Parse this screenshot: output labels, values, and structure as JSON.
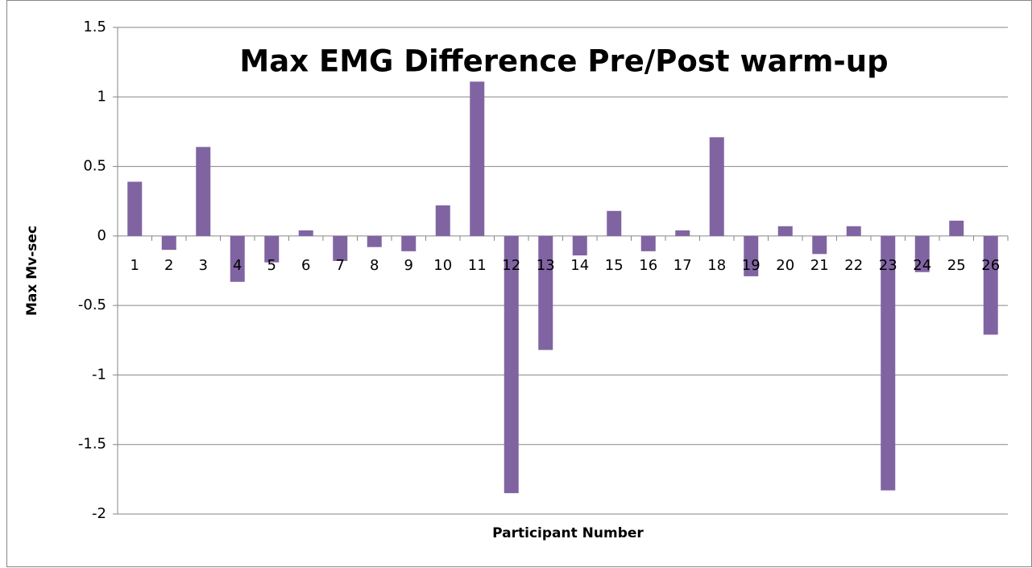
{
  "chart_data": {
    "type": "bar",
    "title": "Max EMG Difference Pre/Post warm-up",
    "xlabel": "Participant Number",
    "ylabel": "Max Mv-sec",
    "categories": [
      "1",
      "2",
      "3",
      "4",
      "5",
      "6",
      "7",
      "8",
      "9",
      "10",
      "11",
      "12",
      "13",
      "14",
      "15",
      "16",
      "17",
      "18",
      "19",
      "20",
      "21",
      "22",
      "23",
      "24",
      "25",
      "26"
    ],
    "values": [
      0.39,
      -0.1,
      0.64,
      -0.33,
      -0.19,
      0.04,
      -0.18,
      -0.08,
      -0.11,
      0.22,
      1.11,
      -1.85,
      -0.82,
      -0.14,
      0.18,
      -0.11,
      0.04,
      0.71,
      -0.29,
      0.07,
      -0.13,
      0.07,
      -1.83,
      -0.26,
      0.11,
      -0.71
    ],
    "color": "#8064a2",
    "ylim": [
      -2,
      1.5
    ],
    "yticks": [
      -2,
      -1.5,
      -1,
      -0.5,
      0,
      0.5,
      1,
      1.5
    ],
    "grid": true
  }
}
